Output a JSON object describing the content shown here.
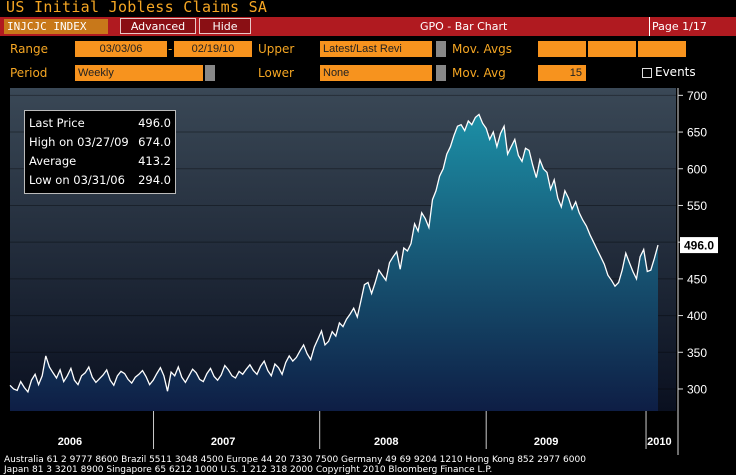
{
  "title": "US Initial Jobless Claims SA",
  "header": {
    "ticker": "INJCJC INDEX",
    "advanced_label": "Advanced",
    "hide_label": "Hide",
    "function_label": "GPO - Bar Chart",
    "page_label": "Page 1/17"
  },
  "controls": {
    "range_label": "Range",
    "range_start": "03/03/06",
    "range_sep": "-",
    "range_end": "02/19/10",
    "upper_label": "Upper",
    "upper_value": "Latest/Last Revi",
    "mov_avgs_label": "Mov. Avgs",
    "period_label": "Period",
    "period_value": "Weekly",
    "lower_label": "Lower",
    "lower_value": "None",
    "mov_avg_label": "Mov. Avg",
    "mov_avg_value": "15",
    "events_label": "Events"
  },
  "legend": {
    "rows": [
      {
        "label": "Last Price",
        "value": "496.0"
      },
      {
        "label": "High on 03/27/09",
        "value": "674.0"
      },
      {
        "label": "Average",
        "value": "413.2"
      },
      {
        "label": "Low on 03/31/06",
        "value": "294.0"
      }
    ]
  },
  "footer": {
    "line1": "Australia 61 2 9777 8600 Brazil 5511 3048 4500 Europe 44 20 7330 7500 Germany 49 69 9204 1210 Hong Kong 852 2977 6000",
    "line2": "Japan 81 3 3201 8900          Singapore 65 6212 1000          U.S. 1 212 318 2000          Copyright 2010 Bloomberg Finance L.P."
  },
  "chart_data": {
    "type": "area",
    "title": "",
    "ylim": [
      270,
      710
    ],
    "yticks": [
      300,
      350,
      400,
      450,
      500,
      550,
      600,
      650,
      700
    ],
    "ytick_labels": [
      "300",
      "350",
      "400",
      "450",
      "",
      "550",
      "600",
      "650",
      "700"
    ],
    "last_value_label": "496.0",
    "x_labels": [
      "2006",
      "2007",
      "2008",
      "2009",
      "2010"
    ],
    "series": [
      {
        "values": [
          305,
          300,
          298,
          310,
          302,
          296,
          312,
          320,
          306,
          318,
          345,
          330,
          322,
          315,
          326,
          310,
          318,
          328,
          312,
          306,
          318,
          322,
          330,
          316,
          309,
          314,
          319,
          326,
          312,
          305,
          318,
          324,
          321,
          313,
          308,
          316,
          320,
          325,
          317,
          306,
          312,
          321,
          329,
          318,
          297,
          323,
          318,
          330,
          316,
          309,
          318,
          327,
          322,
          313,
          310,
          321,
          328,
          317,
          312,
          319,
          332,
          326,
          318,
          315,
          324,
          320,
          327,
          333,
          325,
          320,
          331,
          338,
          325,
          318,
          334,
          329,
          320,
          336,
          345,
          338,
          343,
          352,
          360,
          348,
          340,
          357,
          368,
          379,
          360,
          365,
          378,
          372,
          390,
          385,
          395,
          402,
          410,
          398,
          420,
          442,
          445,
          430,
          445,
          462,
          455,
          448,
          472,
          480,
          487,
          463,
          492,
          488,
          498,
          525,
          515,
          540,
          532,
          520,
          558,
          570,
          590,
          600,
          620,
          630,
          645,
          658,
          660,
          652,
          665,
          660,
          670,
          674,
          662,
          655,
          640,
          650,
          630,
          648,
          658,
          620,
          630,
          640,
          618,
          610,
          628,
          625,
          605,
          588,
          612,
          600,
          595,
          572,
          585,
          560,
          548,
          570,
          560,
          545,
          555,
          540,
          530,
          522,
          510,
          500,
          490,
          480,
          470,
          455,
          448,
          440,
          445,
          462,
          485,
          472,
          460,
          450,
          480,
          490,
          460,
          462,
          478,
          496
        ]
      }
    ]
  }
}
